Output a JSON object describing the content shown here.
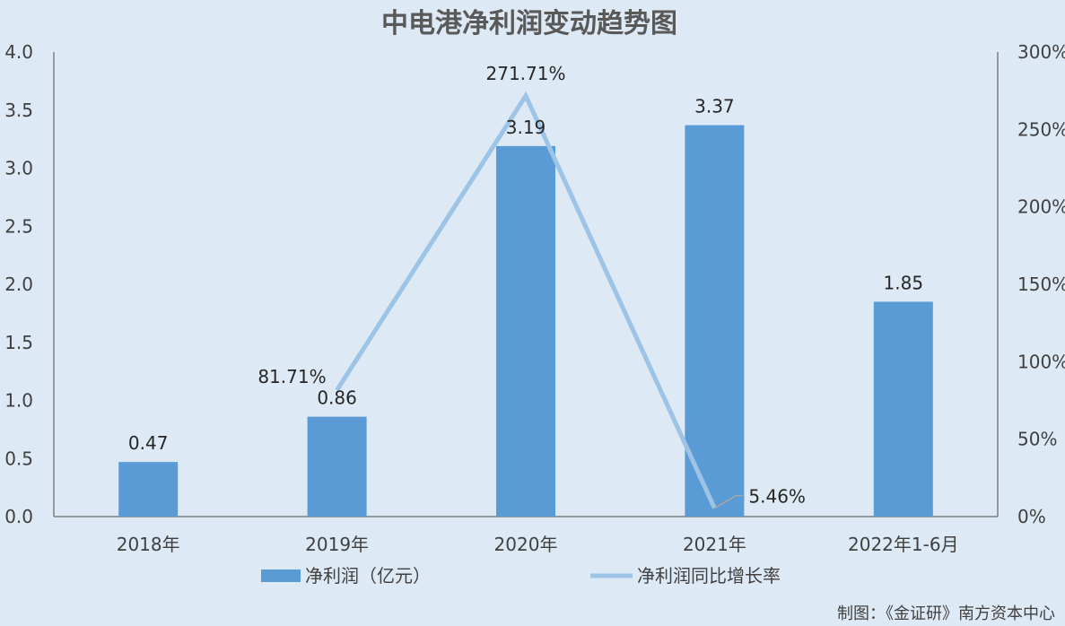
{
  "chart_data": {
    "type": "bar",
    "title": "中电港净利润变动趋势图",
    "categories": [
      "2018年",
      "2019年",
      "2020年",
      "2021年",
      "2022年1-6月"
    ],
    "series": [
      {
        "name": "净利润（亿元）",
        "type": "bar",
        "axis": "left",
        "values": [
          0.47,
          0.86,
          3.19,
          3.37,
          1.85
        ],
        "labels": [
          "0.47",
          "0.86",
          "3.19",
          "3.37",
          "1.85"
        ],
        "color": "#5b9bd5"
      },
      {
        "name": "净利润同比增长率",
        "type": "line",
        "axis": "right",
        "values": [
          null,
          81.71,
          271.71,
          5.46,
          null
        ],
        "labels": [
          "",
          "81.71%",
          "271.71%",
          "5.46%",
          ""
        ],
        "color": "#9dc3e6"
      }
    ],
    "ylim": [
      0,
      4.0
    ],
    "y_ticks": [
      "0.0",
      "0.5",
      "1.0",
      "1.5",
      "2.0",
      "2.5",
      "3.0",
      "3.5",
      "4.0"
    ],
    "y2lim": [
      0,
      300
    ],
    "y2_ticks": [
      "0%",
      "50%",
      "100%",
      "150%",
      "200%",
      "250%",
      "300%"
    ],
    "grid": false,
    "legend": "bottom"
  },
  "source": "制图：《金证研》南方资本中心",
  "colors": {
    "background": "#dde9f5",
    "axis": "#808080"
  }
}
